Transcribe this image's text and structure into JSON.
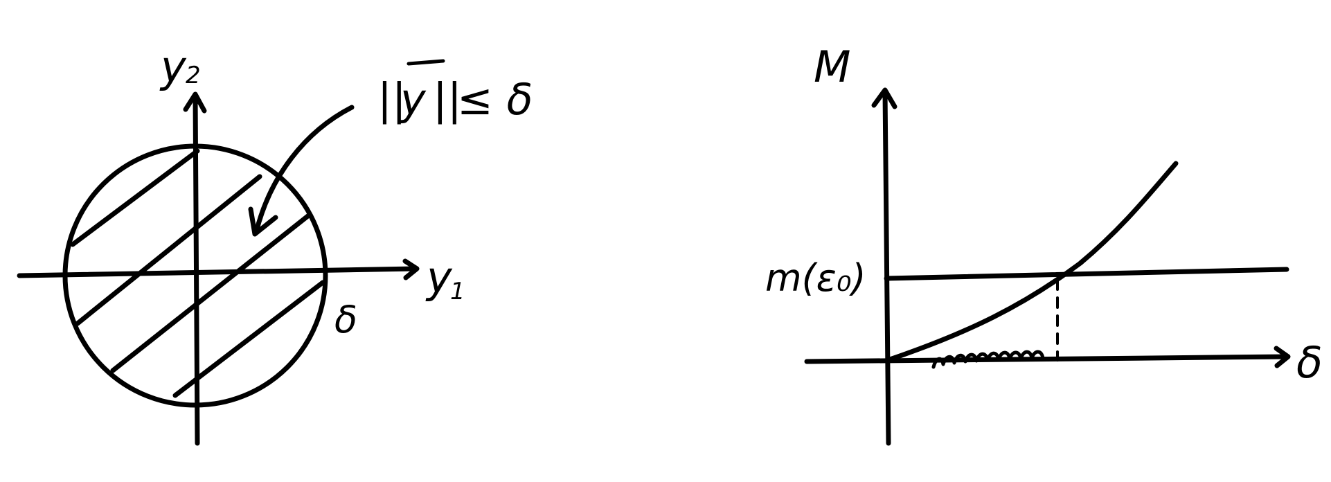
{
  "left_diagram": {
    "axis_x_label": "y",
    "axis_x_sub": "1",
    "axis_y_label": "y",
    "axis_y_sub": "2",
    "radius_label": "δ",
    "annotation": {
      "norm_bars_open": "||",
      "vector": "y",
      "norm_bars_close": "||",
      "relation": "≤ δ"
    }
  },
  "right_diagram": {
    "axis_y_label": "M",
    "axis_x_label": "δ",
    "level_label": "m(ε₀)"
  }
}
